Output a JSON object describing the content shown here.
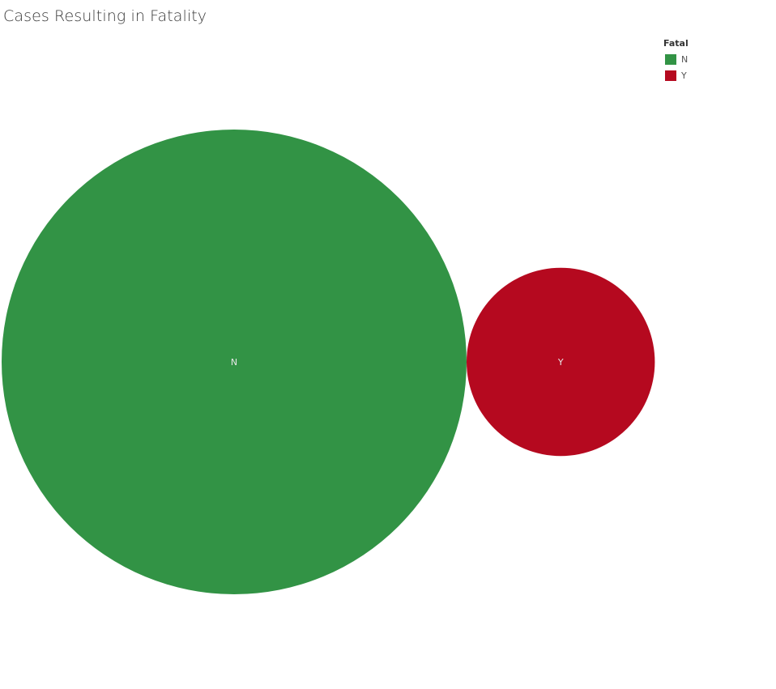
{
  "chart_data": {
    "type": "bubble",
    "title": "Cases Resulting in Fatality",
    "legend": {
      "title": "Fatal",
      "placement": "top-right",
      "items": [
        {
          "label": "N",
          "color": "#329345"
        },
        {
          "label": "Y",
          "color": "#b5091f"
        }
      ]
    },
    "categories": [
      "N",
      "Y"
    ],
    "values": [
      6.1,
      1
    ],
    "colors": [
      "#329345",
      "#b5091f"
    ]
  }
}
